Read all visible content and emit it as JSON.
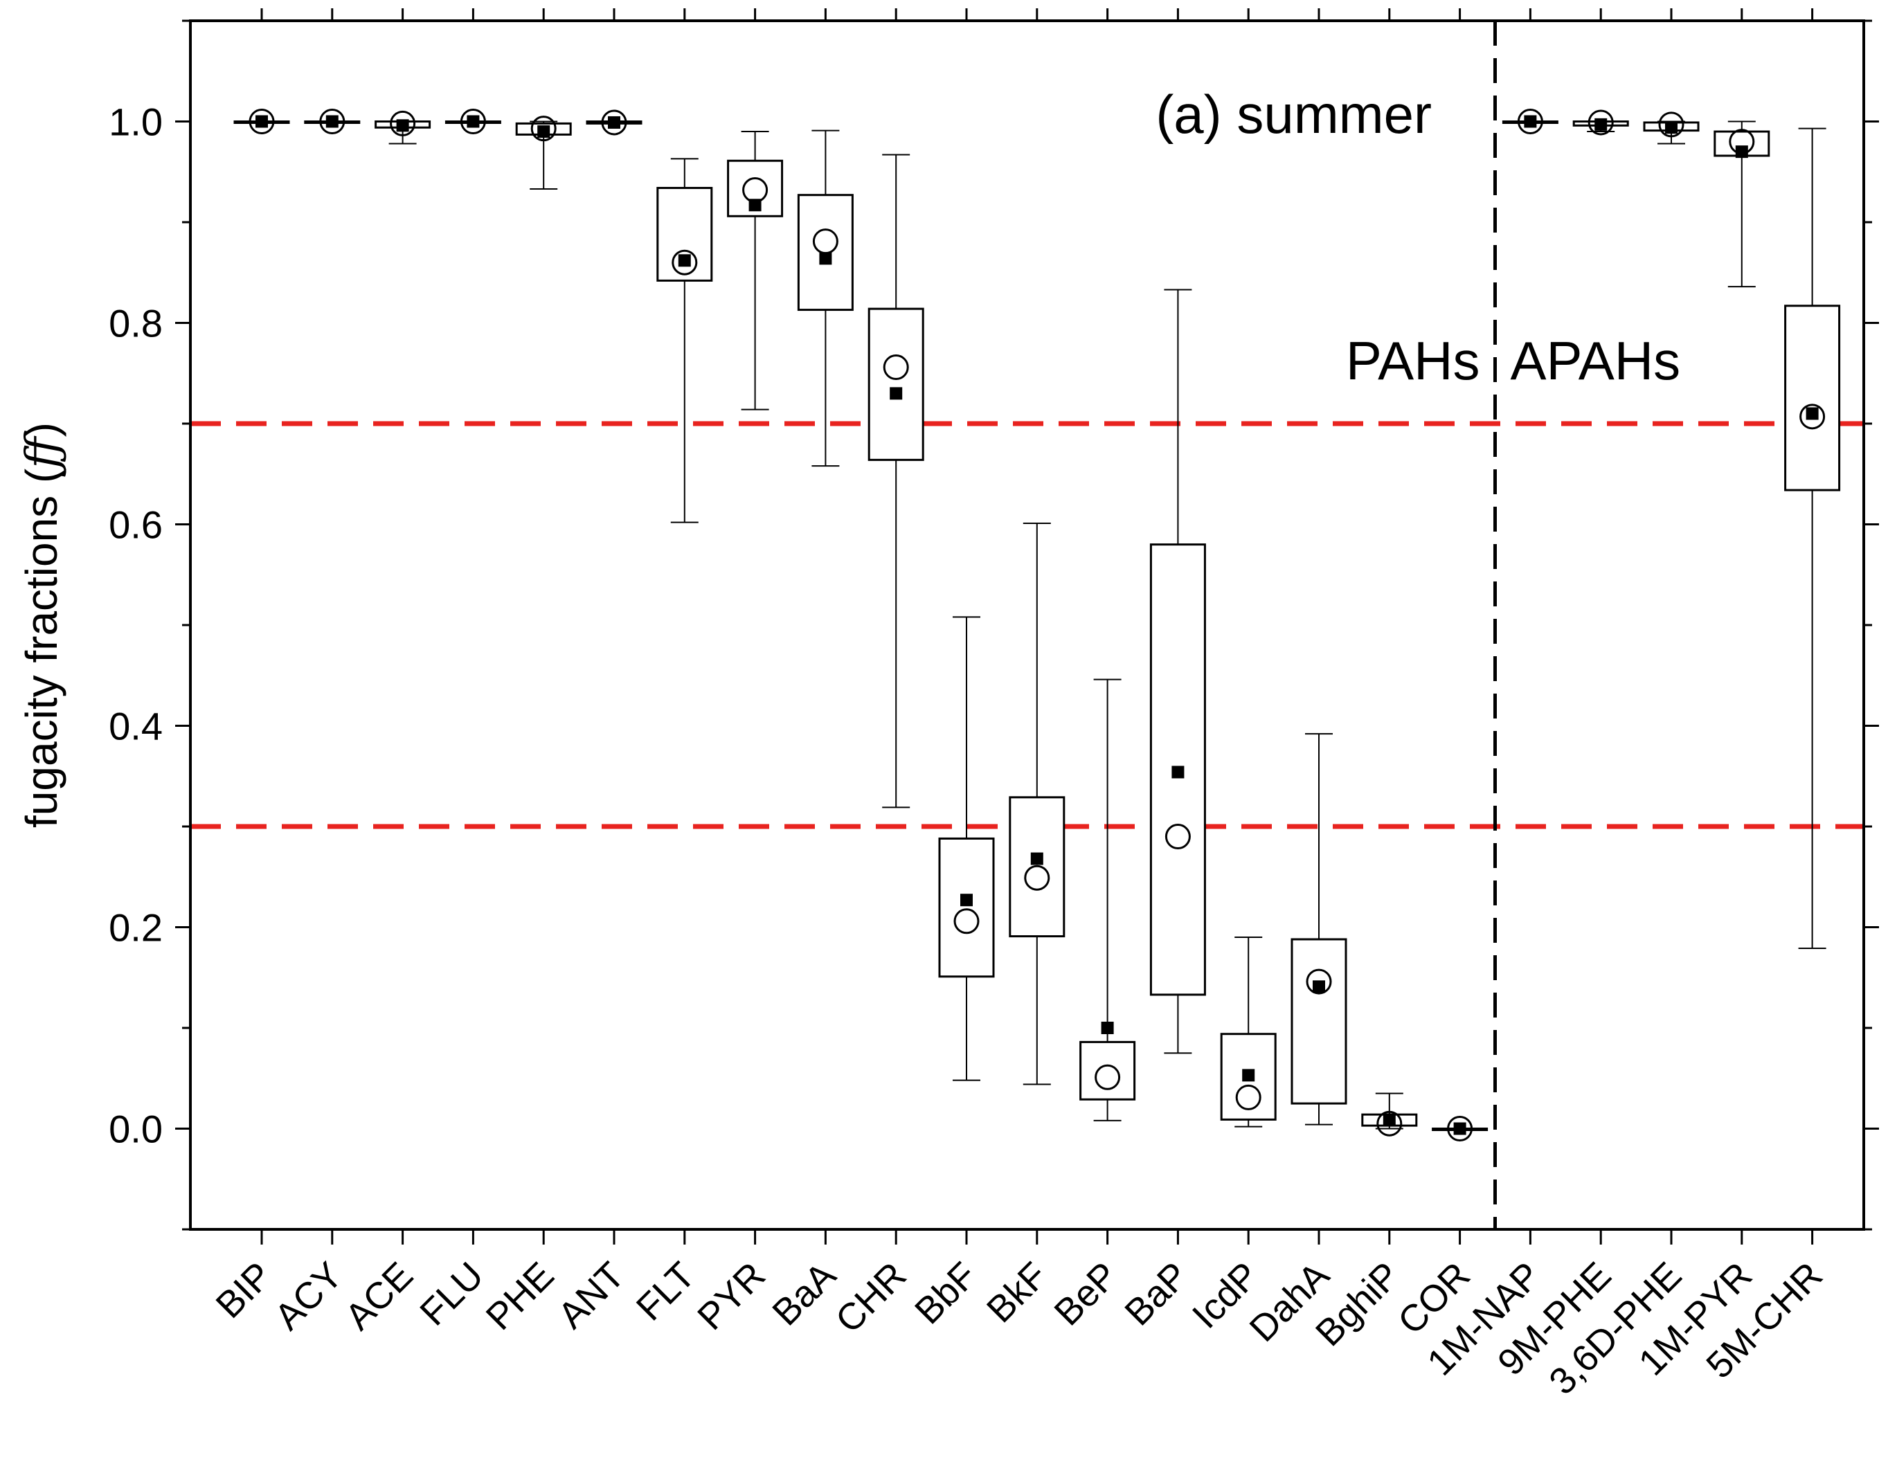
{
  "chart_data": {
    "type": "box",
    "title": "",
    "annotation": "(a) summer",
    "group_labels": [
      "PAHs",
      "APAHs"
    ],
    "ylabel_prefix": "fugacity fractions (",
    "ylabel_symbol": "ƒƒ",
    "ylabel_suffix": ")",
    "xlabel": "",
    "ylim": [
      -0.1,
      1.1
    ],
    "yticks": [
      0.0,
      0.2,
      0.4,
      0.6,
      0.8,
      1.0
    ],
    "ytick_labels": [
      "0.0",
      "0.2",
      "0.4",
      "0.6",
      "0.8",
      "1.0"
    ],
    "threshold_lines": [
      0.7,
      0.3
    ],
    "threshold_color": "#e8231f",
    "group_divider_after_index": 17,
    "legend": "none",
    "grid": false,
    "series_markers": {
      "median": "open circle",
      "mean": "filled square"
    },
    "categories": [
      {
        "name": "BIP",
        "min": 1.0,
        "q1": 1.0,
        "median": 1.0,
        "q3": 1.0,
        "max": 1.0,
        "mean": 1.0
      },
      {
        "name": "ACY",
        "min": 1.0,
        "q1": 1.0,
        "median": 1.0,
        "q3": 1.0,
        "max": 1.0,
        "mean": 1.0
      },
      {
        "name": "ACE",
        "min": 0.978,
        "q1": 0.994,
        "median": 0.998,
        "q3": 1.0,
        "max": 1.0,
        "mean": 0.996
      },
      {
        "name": "FLU",
        "min": 1.0,
        "q1": 1.0,
        "median": 1.0,
        "q3": 1.0,
        "max": 1.0,
        "mean": 1.0
      },
      {
        "name": "PHE",
        "min": 0.933,
        "q1": 0.987,
        "median": 0.993,
        "q3": 0.998,
        "max": 1.0,
        "mean": 0.99
      },
      {
        "name": "ANT",
        "min": 0.998,
        "q1": 0.998,
        "median": 0.999,
        "q3": 1.0,
        "max": 1.0,
        "mean": 0.999
      },
      {
        "name": "FLT",
        "min": 0.602,
        "q1": 0.842,
        "median": 0.86,
        "q3": 0.934,
        "max": 0.963,
        "mean": 0.862
      },
      {
        "name": "PYR",
        "min": 0.714,
        "q1": 0.906,
        "median": 0.932,
        "q3": 0.961,
        "max": 0.99,
        "mean": 0.917
      },
      {
        "name": "BaA",
        "min": 0.658,
        "q1": 0.813,
        "median": 0.881,
        "q3": 0.927,
        "max": 0.991,
        "mean": 0.864
      },
      {
        "name": "CHR",
        "min": 0.319,
        "q1": 0.664,
        "median": 0.756,
        "q3": 0.814,
        "max": 0.967,
        "mean": 0.73
      },
      {
        "name": "BbF",
        "min": 0.048,
        "q1": 0.151,
        "median": 0.206,
        "q3": 0.288,
        "max": 0.508,
        "mean": 0.227
      },
      {
        "name": "BkF",
        "min": 0.044,
        "q1": 0.191,
        "median": 0.249,
        "q3": 0.329,
        "max": 0.601,
        "mean": 0.268
      },
      {
        "name": "BeP",
        "min": 0.008,
        "q1": 0.029,
        "median": 0.051,
        "q3": 0.086,
        "max": 0.446,
        "mean": 0.1
      },
      {
        "name": "BaP",
        "min": 0.075,
        "q1": 0.133,
        "median": 0.29,
        "q3": 0.58,
        "max": 0.833,
        "mean": 0.354
      },
      {
        "name": "IcdP",
        "min": 0.002,
        "q1": 0.009,
        "median": 0.031,
        "q3": 0.094,
        "max": 0.19,
        "mean": 0.053
      },
      {
        "name": "DahA",
        "min": 0.004,
        "q1": 0.025,
        "median": 0.146,
        "q3": 0.188,
        "max": 0.392,
        "mean": 0.141
      },
      {
        "name": "BghiP",
        "min": 0.0,
        "q1": 0.003,
        "median": 0.005,
        "q3": 0.014,
        "max": 0.035,
        "mean": 0.009
      },
      {
        "name": "COR",
        "min": 0.0,
        "q1": 0.0,
        "median": 0.0,
        "q3": 0.0,
        "max": 0.0,
        "mean": 0.0
      },
      {
        "name": "1M-NAP",
        "min": 1.0,
        "q1": 1.0,
        "median": 1.0,
        "q3": 1.0,
        "max": 1.0,
        "mean": 1.0
      },
      {
        "name": "9M-PHE",
        "min": 0.99,
        "q1": 0.996,
        "median": 0.999,
        "q3": 1.0,
        "max": 1.0,
        "mean": 0.997
      },
      {
        "name": "3,6D-PHE",
        "min": 0.978,
        "q1": 0.991,
        "median": 0.997,
        "q3": 0.999,
        "max": 1.0,
        "mean": 0.994
      },
      {
        "name": "1M-PYR",
        "min": 0.836,
        "q1": 0.966,
        "median": 0.98,
        "q3": 0.99,
        "max": 1.0,
        "mean": 0.97
      },
      {
        "name": "5M-CHR",
        "min": 0.179,
        "q1": 0.634,
        "median": 0.707,
        "q3": 0.817,
        "max": 0.993,
        "mean": 0.71
      }
    ]
  }
}
